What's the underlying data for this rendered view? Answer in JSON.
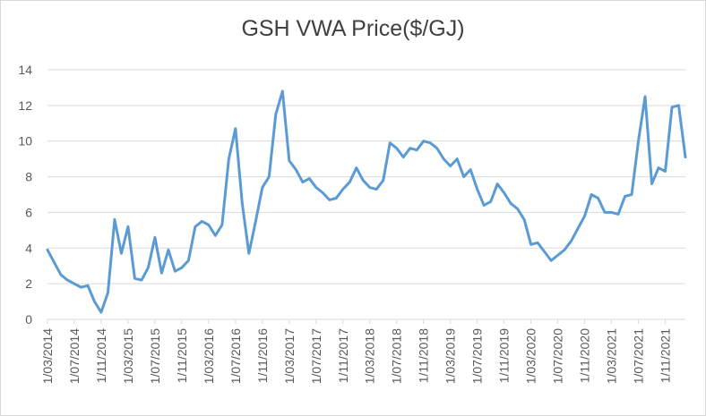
{
  "chart_data": {
    "type": "line",
    "title": "GSH VWA Price($/GJ)",
    "xlabel": "",
    "ylabel": "",
    "ylim": [
      0,
      14
    ],
    "yticks": [
      0,
      2,
      4,
      6,
      8,
      10,
      12,
      14
    ],
    "grid": true,
    "legend": "none",
    "x_tick_labels": [
      "1/03/2014",
      "1/07/2014",
      "1/11/2014",
      "1/03/2015",
      "1/07/2015",
      "1/11/2015",
      "1/03/2016",
      "1/07/2016",
      "1/11/2016",
      "1/03/2017",
      "1/07/2017",
      "1/11/2017",
      "1/03/2018",
      "1/07/2018",
      "1/11/2018",
      "1/03/2019",
      "1/07/2019",
      "1/11/2019",
      "1/03/2020",
      "1/07/2020",
      "1/11/2020",
      "1/03/2021",
      "1/07/2021",
      "1/11/2021"
    ],
    "series": [
      {
        "name": "GSH VWA Price($/GJ)",
        "color": "#5b9bd5",
        "values": [
          3.9,
          3.2,
          2.5,
          2.2,
          2.0,
          1.8,
          1.9,
          1.0,
          0.4,
          1.5,
          5.6,
          3.7,
          5.2,
          2.3,
          2.2,
          2.9,
          4.6,
          2.6,
          3.9,
          2.7,
          2.9,
          3.3,
          5.2,
          5.5,
          5.3,
          4.7,
          5.3,
          9.0,
          10.7,
          6.5,
          3.7,
          5.5,
          7.4,
          8.0,
          11.5,
          12.8,
          8.9,
          8.4,
          7.7,
          7.9,
          7.4,
          7.1,
          6.7,
          6.8,
          7.3,
          7.7,
          8.5,
          7.8,
          7.4,
          7.3,
          7.8,
          9.9,
          9.6,
          9.1,
          9.6,
          9.5,
          10.0,
          9.9,
          9.6,
          9.0,
          8.6,
          9.0,
          8.0,
          8.4,
          7.3,
          6.4,
          6.6,
          7.6,
          7.1,
          6.5,
          6.2,
          5.6,
          4.2,
          4.3,
          3.8,
          3.3,
          3.6,
          3.9,
          4.4,
          5.1,
          5.8,
          7.0,
          6.8,
          6.0,
          6.0,
          5.9,
          6.9,
          7.0,
          10.0,
          12.5,
          7.6,
          8.5,
          8.3,
          11.9,
          12.0,
          9.1
        ]
      }
    ]
  }
}
